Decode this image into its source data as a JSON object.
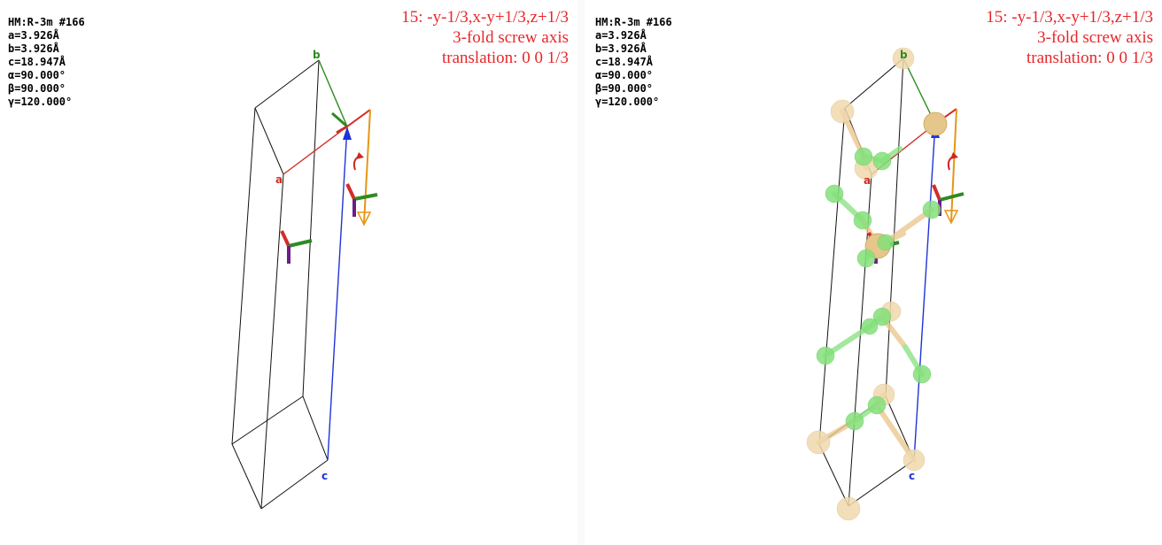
{
  "cell": {
    "space_group": "HM:R-3m #166",
    "a": "a=3.926Å",
    "b": "b=3.926Å",
    "c": "c=18.947Å",
    "alpha": "α=90.000°",
    "beta": "β=90.000°",
    "gamma": "γ=120.000°"
  },
  "symmetry_op": {
    "title": "15: -y-1/3,x-y+1/3,z+1/3",
    "type": "3-fold screw axis",
    "translation": "translation: 0 0 1/3"
  },
  "axes": {
    "a": {
      "label": "a",
      "color": "#d22d26"
    },
    "b": {
      "label": "b",
      "color": "#2e8b22"
    },
    "c": {
      "label": "c",
      "color": "#1f33d6"
    }
  },
  "colors": {
    "op_text": "#e8262a",
    "screw_arrow": "#e69516",
    "rotation_marker": "#d0251f",
    "atom_large": "#f0d9ad",
    "atom_small": "#84e07a",
    "bond_large": "#ecc991",
    "bond_small": "#8ee387"
  },
  "icons": [
    "rotation-arrow-icon",
    "axis-triad-icon"
  ]
}
